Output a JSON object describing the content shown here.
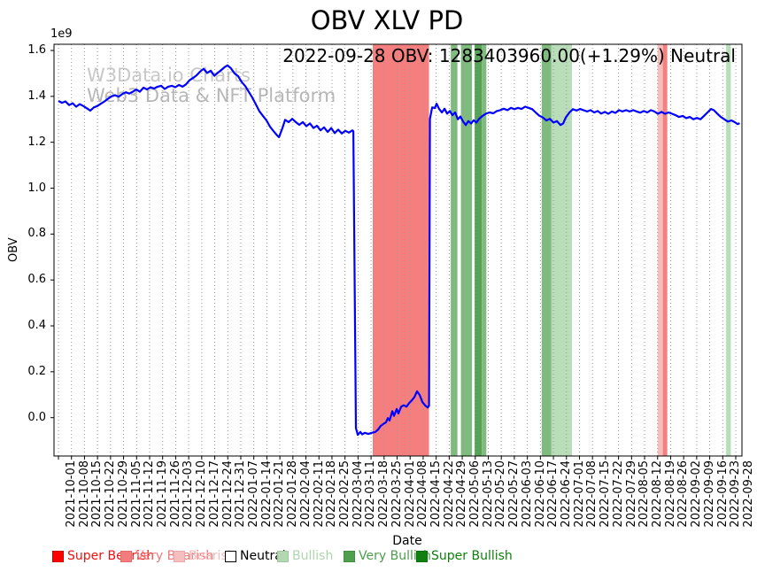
{
  "title": "OBV XLV PD",
  "annotation": "2022-09-28 OBV: 1283403960.00(+1.29%) Neutral",
  "watermark": {
    "line1": "W3Data.io Charts",
    "line2": "Web3 Data & NFT Platform"
  },
  "y_axis": {
    "label": "OBV",
    "offset_label": "1e9",
    "ticks": [
      {
        "label": "0.0",
        "value": 0.0
      },
      {
        "label": "0.2",
        "value": 0.2
      },
      {
        "label": "0.4",
        "value": 0.4
      },
      {
        "label": "0.6",
        "value": 0.6
      },
      {
        "label": "0.8",
        "value": 0.8
      },
      {
        "label": "1.0",
        "value": 1.0
      },
      {
        "label": "1.2",
        "value": 1.2
      },
      {
        "label": "1.4",
        "value": 1.4
      },
      {
        "label": "1.6",
        "value": 1.6
      }
    ]
  },
  "x_axis": {
    "label": "Date",
    "ticks": [
      "2021-10-01",
      "2021-10-08",
      "2021-10-15",
      "2021-10-22",
      "2021-10-29",
      "2021-11-05",
      "2021-11-12",
      "2021-11-19",
      "2021-11-26",
      "2021-12-03",
      "2021-12-10",
      "2021-12-17",
      "2021-12-24",
      "2021-12-31",
      "2022-01-07",
      "2022-01-14",
      "2022-01-21",
      "2022-01-28",
      "2022-02-04",
      "2022-02-11",
      "2022-02-18",
      "2022-02-25",
      "2022-03-04",
      "2022-03-11",
      "2022-03-18",
      "2022-03-25",
      "2022-04-01",
      "2022-04-08",
      "2022-04-15",
      "2022-04-22",
      "2022-04-29",
      "2022-05-06",
      "2022-05-13",
      "2022-05-20",
      "2022-05-27",
      "2022-06-03",
      "2022-06-10",
      "2022-06-17",
      "2022-06-24",
      "2022-07-01",
      "2022-07-08",
      "2022-07-15",
      "2022-07-22",
      "2022-07-29",
      "2022-08-05",
      "2022-08-12",
      "2022-08-19",
      "2022-08-26",
      "2022-09-02",
      "2022-09-09",
      "2022-09-16",
      "2022-09-23",
      "2022-09-28"
    ]
  },
  "legend": {
    "items": [
      {
        "label": "Super Bearish",
        "swatch": "#ff0000",
        "border": "#cc0000",
        "text_color": "#ee1111"
      },
      {
        "label": "Very Bearish",
        "swatch": "#f47c7c",
        "border": "#e06c6c",
        "text_color": "#f07878"
      },
      {
        "label": "Bearish",
        "swatch": "#f6bebe",
        "border": "#eaaaaa",
        "text_color": "#f3baba"
      },
      {
        "label": "Neutral",
        "swatch": "#ffffff",
        "border": "#000000",
        "text_color": "#000000"
      },
      {
        "label": "Bullish",
        "swatch": "#b2d8b2",
        "border": "#9cc89c",
        "text_color": "#aed4ae"
      },
      {
        "label": "Very Bullish",
        "swatch": "#4f9f4f",
        "border": "#428f42",
        "text_color": "#4d9d4d"
      },
      {
        "label": "Super Bullish",
        "swatch": "#108010",
        "border": "#0a700a",
        "text_color": "#0e7e0e"
      }
    ]
  },
  "chart_data": {
    "type": "line",
    "title": "OBV XLV PD",
    "xlabel": "Date",
    "ylabel": "OBV",
    "y_unit": "1e9",
    "ylim": [
      -0.167,
      1.627
    ],
    "x_unit": "week_index (0 = 2021-10-01, 52 = 2022-09-28, weekly ticks)",
    "grid": "vertical dotted at each weekly tick",
    "legend_position": "bottom row, outside axes",
    "line_color": "#0000ff",
    "series": [
      {
        "name": "OBV",
        "color": "#0000ff",
        "points_week_value": [
          [
            0,
            1.38
          ],
          [
            0.27,
            1.372
          ],
          [
            0.54,
            1.378
          ],
          [
            0.82,
            1.362
          ],
          [
            1.09,
            1.37
          ],
          [
            1.36,
            1.355
          ],
          [
            1.63,
            1.366
          ],
          [
            1.9,
            1.358
          ],
          [
            2.18,
            1.348
          ],
          [
            2.45,
            1.338
          ],
          [
            2.72,
            1.352
          ],
          [
            2.99,
            1.358
          ],
          [
            3.26,
            1.368
          ],
          [
            3.54,
            1.378
          ],
          [
            3.81,
            1.39
          ],
          [
            4.08,
            1.4
          ],
          [
            4.35,
            1.405
          ],
          [
            4.62,
            1.398
          ],
          [
            4.9,
            1.41
          ],
          [
            5.17,
            1.418
          ],
          [
            5.44,
            1.412
          ],
          [
            5.71,
            1.42
          ],
          [
            5.98,
            1.43
          ],
          [
            6.25,
            1.42
          ],
          [
            6.53,
            1.438
          ],
          [
            6.8,
            1.43
          ],
          [
            7.07,
            1.44
          ],
          [
            7.34,
            1.434
          ],
          [
            7.61,
            1.442
          ],
          [
            7.89,
            1.446
          ],
          [
            8.16,
            1.432
          ],
          [
            8.43,
            1.442
          ],
          [
            8.7,
            1.446
          ],
          [
            8.97,
            1.44
          ],
          [
            9.25,
            1.45
          ],
          [
            9.52,
            1.442
          ],
          [
            9.79,
            1.452
          ],
          [
            10.06,
            1.47
          ],
          [
            10.33,
            1.48
          ],
          [
            10.61,
            1.492
          ],
          [
            10.88,
            1.508
          ],
          [
            11.15,
            1.52
          ],
          [
            11.42,
            1.502
          ],
          [
            11.69,
            1.512
          ],
          [
            11.97,
            1.49
          ],
          [
            12.24,
            1.503
          ],
          [
            12.51,
            1.515
          ],
          [
            12.78,
            1.528
          ],
          [
            12.98,
            1.535
          ],
          [
            13.25,
            1.522
          ],
          [
            13.52,
            1.5
          ],
          [
            13.8,
            1.488
          ],
          [
            14.07,
            1.462
          ],
          [
            14.34,
            1.445
          ],
          [
            14.61,
            1.42
          ],
          [
            14.88,
            1.395
          ],
          [
            15.16,
            1.365
          ],
          [
            15.43,
            1.335
          ],
          [
            15.7,
            1.315
          ],
          [
            15.97,
            1.295
          ],
          [
            16.24,
            1.268
          ],
          [
            16.52,
            1.248
          ],
          [
            16.79,
            1.23
          ],
          [
            16.93,
            1.222
          ],
          [
            17.2,
            1.262
          ],
          [
            17.4,
            1.298
          ],
          [
            17.67,
            1.288
          ],
          [
            17.95,
            1.302
          ],
          [
            18.22,
            1.288
          ],
          [
            18.49,
            1.276
          ],
          [
            18.76,
            1.288
          ],
          [
            19.03,
            1.27
          ],
          [
            19.31,
            1.282
          ],
          [
            19.58,
            1.262
          ],
          [
            19.85,
            1.272
          ],
          [
            20.12,
            1.252
          ],
          [
            20.39,
            1.265
          ],
          [
            20.67,
            1.245
          ],
          [
            20.94,
            1.262
          ],
          [
            21.21,
            1.24
          ],
          [
            21.48,
            1.255
          ],
          [
            21.75,
            1.238
          ],
          [
            22.02,
            1.25
          ],
          [
            22.3,
            1.242
          ],
          [
            22.57,
            1.252
          ],
          [
            22.64,
            1.248
          ],
          [
            22.84,
            -0.045
          ],
          [
            22.98,
            -0.075
          ],
          [
            23.18,
            -0.062
          ],
          [
            23.32,
            -0.073
          ],
          [
            23.52,
            -0.066
          ],
          [
            23.79,
            -0.071
          ],
          [
            24.06,
            -0.066
          ],
          [
            24.33,
            -0.062
          ],
          [
            24.54,
            -0.052
          ],
          [
            24.74,
            -0.036
          ],
          [
            24.95,
            -0.027
          ],
          [
            25.15,
            -0.02
          ],
          [
            25.29,
            -0.002
          ],
          [
            25.42,
            -0.012
          ],
          [
            25.63,
            0.028
          ],
          [
            25.76,
            0.008
          ],
          [
            25.97,
            0.038
          ],
          [
            26.1,
            0.018
          ],
          [
            26.31,
            0.048
          ],
          [
            26.51,
            0.054
          ],
          [
            26.72,
            0.048
          ],
          [
            26.92,
            0.063
          ],
          [
            27.12,
            0.075
          ],
          [
            27.33,
            0.09
          ],
          [
            27.53,
            0.115
          ],
          [
            27.74,
            0.098
          ],
          [
            27.94,
            0.068
          ],
          [
            28.14,
            0.054
          ],
          [
            28.35,
            0.044
          ],
          [
            28.45,
            0.052
          ],
          [
            28.52,
            1.302
          ],
          [
            28.69,
            1.352
          ],
          [
            28.9,
            1.349
          ],
          [
            29.03,
            1.368
          ],
          [
            29.23,
            1.345
          ],
          [
            29.44,
            1.33
          ],
          [
            29.64,
            1.346
          ],
          [
            29.84,
            1.325
          ],
          [
            30.05,
            1.336
          ],
          [
            30.25,
            1.318
          ],
          [
            30.46,
            1.33
          ],
          [
            30.66,
            1.3
          ],
          [
            30.86,
            1.312
          ],
          [
            31.07,
            1.29
          ],
          [
            31.27,
            1.275
          ],
          [
            31.47,
            1.292
          ],
          [
            31.68,
            1.282
          ],
          [
            31.88,
            1.296
          ],
          [
            32.09,
            1.286
          ],
          [
            32.29,
            1.302
          ],
          [
            32.56,
            1.315
          ],
          [
            32.83,
            1.325
          ],
          [
            33.11,
            1.33
          ],
          [
            33.38,
            1.326
          ],
          [
            33.65,
            1.336
          ],
          [
            33.92,
            1.34
          ],
          [
            34.19,
            1.346
          ],
          [
            34.47,
            1.34
          ],
          [
            34.74,
            1.35
          ],
          [
            35.01,
            1.344
          ],
          [
            35.28,
            1.35
          ],
          [
            35.55,
            1.345
          ],
          [
            35.83,
            1.355
          ],
          [
            36.1,
            1.35
          ],
          [
            36.37,
            1.344
          ],
          [
            36.64,
            1.33
          ],
          [
            36.91,
            1.316
          ],
          [
            37.19,
            1.308
          ],
          [
            37.46,
            1.295
          ],
          [
            37.73,
            1.302
          ],
          [
            38,
            1.286
          ],
          [
            38.27,
            1.292
          ],
          [
            38.55,
            1.275
          ],
          [
            38.75,
            1.282
          ],
          [
            38.95,
            1.308
          ],
          [
            39.23,
            1.33
          ],
          [
            39.5,
            1.344
          ],
          [
            39.77,
            1.338
          ],
          [
            40.04,
            1.345
          ],
          [
            40.31,
            1.34
          ],
          [
            40.59,
            1.334
          ],
          [
            40.86,
            1.34
          ],
          [
            41.13,
            1.33
          ],
          [
            41.4,
            1.336
          ],
          [
            41.67,
            1.325
          ],
          [
            41.95,
            1.332
          ],
          [
            42.22,
            1.324
          ],
          [
            42.49,
            1.334
          ],
          [
            42.76,
            1.328
          ],
          [
            43.03,
            1.34
          ],
          [
            43.3,
            1.334
          ],
          [
            43.58,
            1.34
          ],
          [
            43.85,
            1.334
          ],
          [
            44.12,
            1.34
          ],
          [
            44.39,
            1.334
          ],
          [
            44.66,
            1.329
          ],
          [
            44.94,
            1.336
          ],
          [
            45.21,
            1.33
          ],
          [
            45.48,
            1.34
          ],
          [
            45.75,
            1.334
          ],
          [
            46.02,
            1.324
          ],
          [
            46.3,
            1.332
          ],
          [
            46.57,
            1.324
          ],
          [
            46.84,
            1.33
          ],
          [
            47.11,
            1.324
          ],
          [
            47.38,
            1.318
          ],
          [
            47.65,
            1.31
          ],
          [
            47.93,
            1.315
          ],
          [
            48.2,
            1.305
          ],
          [
            48.47,
            1.31
          ],
          [
            48.74,
            1.3
          ],
          [
            49.01,
            1.306
          ],
          [
            49.29,
            1.3
          ],
          [
            49.56,
            1.315
          ],
          [
            49.83,
            1.33
          ],
          [
            50.1,
            1.345
          ],
          [
            50.31,
            1.34
          ],
          [
            50.58,
            1.325
          ],
          [
            50.85,
            1.31
          ],
          [
            51.12,
            1.3
          ],
          [
            51.39,
            1.29
          ],
          [
            51.67,
            1.295
          ],
          [
            51.94,
            1.287
          ],
          [
            52.15,
            1.279
          ],
          [
            52.3,
            1.283
          ]
        ]
      }
    ],
    "signal_bands": [
      {
        "signal": "very-bearish",
        "from_week": 24.13,
        "to_week": 28.45,
        "color": "#f57f7f"
      },
      {
        "signal": "very-bullish",
        "from_week": 30.12,
        "to_week": 30.63,
        "color": "#7fba7f"
      },
      {
        "signal": "very-bullish",
        "from_week": 30.9,
        "to_week": 31.75,
        "color": "#7fba7f"
      },
      {
        "signal": "super-bullish",
        "from_week": 31.95,
        "to_week": 32.5,
        "color": "#58a258"
      },
      {
        "signal": "very-bullish",
        "from_week": 32.5,
        "to_week": 32.85,
        "color": "#7fba7f"
      },
      {
        "signal": "very-bullish",
        "from_week": 37.1,
        "to_week": 37.85,
        "color": "#7fba7f"
      },
      {
        "signal": "bullish",
        "from_week": 37.85,
        "to_week": 39.43,
        "color": "#b9dcb9"
      },
      {
        "signal": "bearish",
        "from_week": 46.0,
        "to_week": 46.4,
        "color": "#f8bcbc"
      },
      {
        "signal": "very-bearish",
        "from_week": 46.4,
        "to_week": 46.74,
        "color": "#f57f7f"
      },
      {
        "signal": "bullish",
        "from_week": 51.26,
        "to_week": 51.62,
        "color": "#b9dcb9"
      }
    ],
    "last_point": {
      "date": "2022-09-28",
      "obv": "1283403960.00",
      "change_pct": "+1.29%",
      "signal": "Neutral"
    }
  }
}
